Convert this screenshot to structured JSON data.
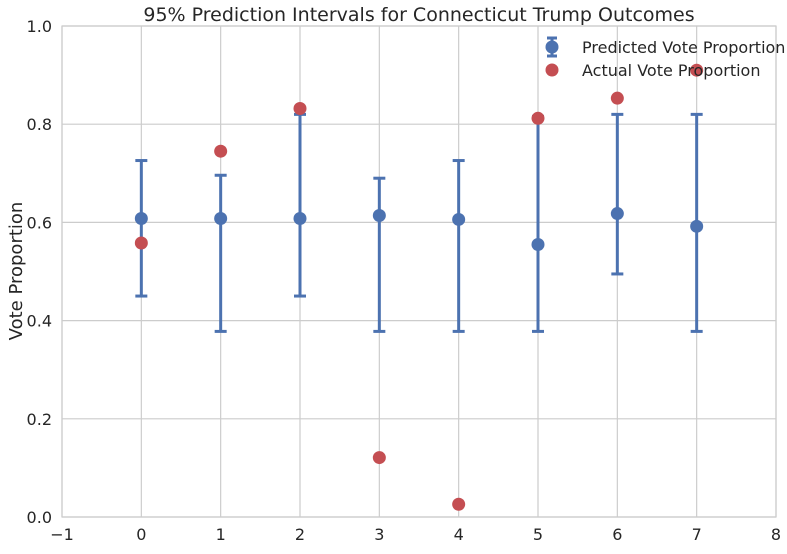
{
  "chart_data": {
    "type": "scatter",
    "title": "95% Prediction Intervals for Connecticut Trump Outcomes",
    "xlabel": "",
    "ylabel": "Vote Proportion",
    "xlim": [
      -1,
      8
    ],
    "ylim": [
      0.0,
      1.0
    ],
    "xticks": [
      "−1",
      "0",
      "1",
      "2",
      "3",
      "4",
      "5",
      "6",
      "7",
      "8"
    ],
    "xtick_values": [
      -1,
      0,
      1,
      2,
      3,
      4,
      5,
      6,
      7,
      8
    ],
    "yticks": [
      "0.0",
      "0.2",
      "0.4",
      "0.6",
      "0.8",
      "1.0"
    ],
    "ytick_values": [
      0.0,
      0.2,
      0.4,
      0.6,
      0.8,
      1.0
    ],
    "grid": true,
    "legend_position": "top-right",
    "series": [
      {
        "name": "Predicted Vote Proportion",
        "color": "#4c72b0",
        "marker": "errorbar",
        "x": [
          0,
          1,
          2,
          3,
          4,
          5,
          6,
          7
        ],
        "y": [
          0.608,
          0.608,
          0.608,
          0.614,
          0.606,
          0.555,
          0.618,
          0.592
        ],
        "lower": [
          0.45,
          0.378,
          0.45,
          0.378,
          0.378,
          0.378,
          0.495,
          0.378
        ],
        "upper": [
          0.726,
          0.696,
          0.82,
          0.69,
          0.726,
          0.816,
          0.82,
          0.82
        ]
      },
      {
        "name": "Actual Vote Proportion",
        "color": "#c44e52",
        "marker": "point",
        "x": [
          0,
          1,
          2,
          3,
          4,
          5,
          6,
          7
        ],
        "y": [
          0.558,
          0.745,
          0.832,
          0.121,
          0.026,
          0.812,
          0.853,
          0.91
        ]
      }
    ]
  }
}
